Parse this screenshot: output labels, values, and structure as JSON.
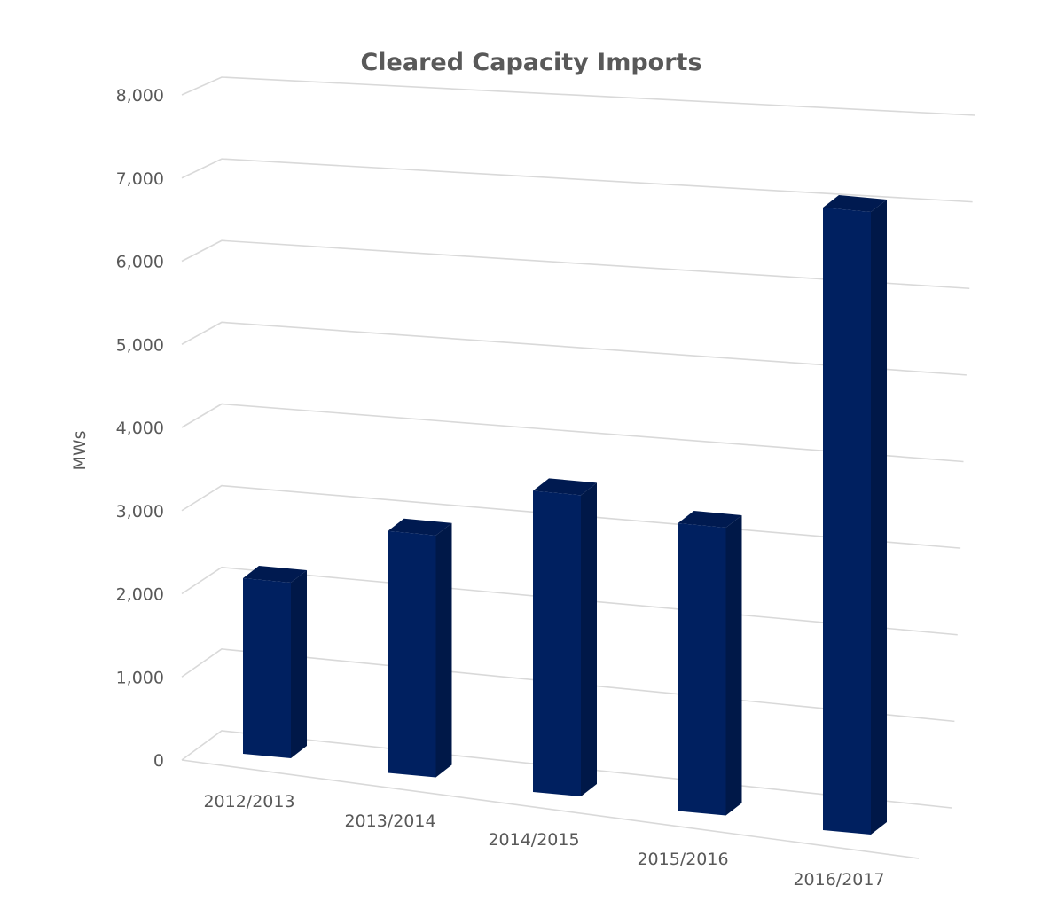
{
  "chart_data": {
    "type": "bar",
    "style": "3d-column",
    "title": "Cleared Capacity Imports",
    "xlabel": "",
    "ylabel": "MWs",
    "categories": [
      "2012/2013",
      "2013/2014",
      "2014/2015",
      "2015/2016",
      "2016/2017"
    ],
    "series": [
      {
        "values": [
          2200,
          3000,
          3700,
          3500,
          7500
        ]
      }
    ],
    "ylim": [
      0,
      8000
    ],
    "yticks": [
      "0",
      "1,000",
      "2,000",
      "3,000",
      "4,000",
      "5,000",
      "6,000",
      "7,000",
      "8,000"
    ],
    "grid": true,
    "legend": "none",
    "colors": {
      "bar_front": "#002060",
      "bar_side": "#001848",
      "bar_top": "#001a50",
      "grid": "#d9d9d9",
      "text": "#595959"
    }
  }
}
